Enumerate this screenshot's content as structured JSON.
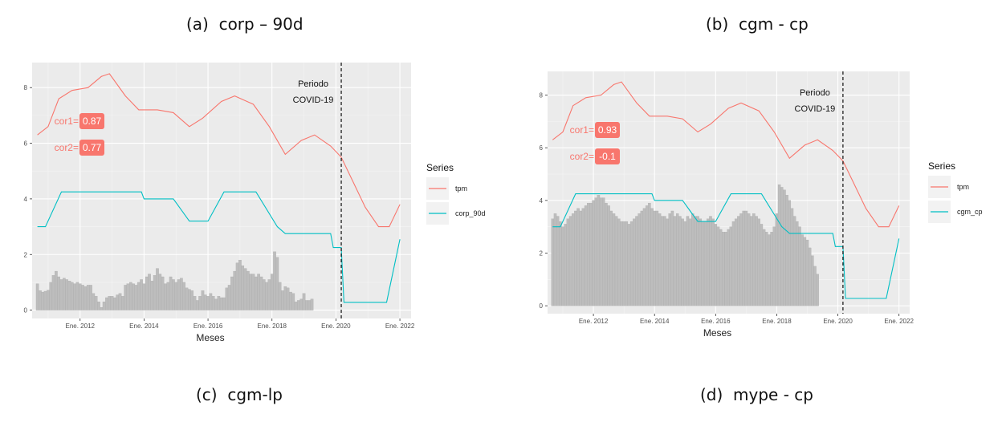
{
  "captions": [
    "(a)  corp – 90d",
    "(b)  cgm - cp",
    "(c)  cgm-lp",
    "(d)  mype - cp"
  ],
  "colors": {
    "tpm": "#F8766D",
    "series2": "#00BFC4",
    "bars": "#bdbdbd",
    "panel": "#ebebeb"
  },
  "chart_data": [
    {
      "type": "line",
      "caption": "(a)  corp – 90d",
      "xlabel": "Meses",
      "x_ticks": [
        "Ene. 2012",
        "Ene. 2014",
        "Ene. 2016",
        "Ene. 2018",
        "Ene. 2020",
        "Ene. 2022"
      ],
      "ylim": [
        -0.3,
        8.9
      ],
      "y_ticks": [
        0,
        2,
        4,
        6,
        8
      ],
      "legend_title": "Series",
      "legend_position": "right",
      "annotation": [
        "Periodo",
        "COVID-19"
      ],
      "covid_line": "2020-03",
      "correlations": [
        {
          "label": "cor1=",
          "value": "0.87"
        },
        {
          "label": "cor2=",
          "value": "0.77"
        }
      ],
      "series": [
        {
          "name": "tpm",
          "points": [
            [
              "2010-09",
              6.3
            ],
            [
              "2011-01",
              6.6
            ],
            [
              "2011-05",
              7.6
            ],
            [
              "2011-10",
              7.9
            ],
            [
              "2012-04",
              8.0
            ],
            [
              "2012-09",
              8.4
            ],
            [
              "2012-12",
              8.5
            ],
            [
              "2013-06",
              7.7
            ],
            [
              "2013-11",
              7.2
            ],
            [
              "2014-06",
              7.2
            ],
            [
              "2014-12",
              7.1
            ],
            [
              "2015-06",
              6.6
            ],
            [
              "2015-11",
              6.9
            ],
            [
              "2016-06",
              7.5
            ],
            [
              "2016-11",
              7.7
            ],
            [
              "2017-06",
              7.4
            ],
            [
              "2017-12",
              6.6
            ],
            [
              "2018-06",
              5.6
            ],
            [
              "2018-12",
              6.1
            ],
            [
              "2019-05",
              6.3
            ],
            [
              "2019-11",
              5.9
            ],
            [
              "2020-03",
              5.5
            ],
            [
              "2020-07",
              4.7
            ],
            [
              "2020-12",
              3.7
            ],
            [
              "2021-05",
              3.0
            ],
            [
              "2021-09",
              3.0
            ],
            [
              "2022-01",
              3.8
            ]
          ]
        },
        {
          "name": "corp_90d",
          "points": [
            [
              "2010-09",
              3.0
            ],
            [
              "2010-12",
              3.0
            ],
            [
              "2011-06",
              4.25
            ],
            [
              "2013-12",
              4.25
            ],
            [
              "2014-01",
              4.0
            ],
            [
              "2014-12",
              4.0
            ],
            [
              "2015-03",
              3.6
            ],
            [
              "2015-06",
              3.2
            ],
            [
              "2016-01",
              3.2
            ],
            [
              "2016-07",
              4.25
            ],
            [
              "2017-07",
              4.25
            ],
            [
              "2018-03",
              3.0
            ],
            [
              "2018-06",
              2.75
            ],
            [
              "2019-11",
              2.75
            ],
            [
              "2019-12",
              2.25
            ],
            [
              "2020-03",
              2.25
            ],
            [
              "2020-04",
              0.28
            ],
            [
              "2021-08",
              0.28
            ],
            [
              "2022-01",
              2.55
            ]
          ]
        }
      ],
      "bars": [
        0.95,
        0.7,
        0.65,
        0.68,
        0.72,
        1.0,
        1.25,
        1.4,
        1.2,
        1.1,
        1.15,
        1.1,
        1.05,
        1.0,
        0.95,
        1.0,
        0.95,
        0.9,
        0.85,
        0.9,
        0.9,
        0.6,
        0.5,
        0.3,
        0.1,
        0.3,
        0.45,
        0.5,
        0.5,
        0.45,
        0.55,
        0.6,
        0.5,
        0.9,
        0.95,
        1.0,
        0.95,
        0.9,
        1.0,
        1.1,
        0.95,
        1.2,
        1.3,
        1.05,
        1.25,
        1.5,
        1.3,
        1.2,
        0.95,
        1.0,
        1.2,
        1.1,
        1.0,
        1.1,
        1.15,
        1.0,
        0.8,
        0.75,
        0.7,
        0.5,
        0.35,
        0.5,
        0.7,
        0.55,
        0.5,
        0.6,
        0.5,
        0.4,
        0.5,
        0.45,
        0.45,
        0.8,
        0.9,
        1.2,
        1.4,
        1.7,
        1.8,
        1.6,
        1.5,
        1.4,
        1.3,
        1.3,
        1.2,
        1.3,
        1.2,
        1.1,
        1.0,
        1.1,
        1.3,
        2.1,
        1.9,
        1.0,
        0.7,
        0.85,
        0.8,
        0.65,
        0.6,
        0.3,
        0.35,
        0.4,
        0.6,
        0.35,
        0.35,
        0.4
      ]
    },
    {
      "type": "line",
      "caption": "(b)  cgm - cp",
      "xlabel": "Meses",
      "x_ticks": [
        "Ene. 2012",
        "Ene. 2014",
        "Ene. 2016",
        "Ene. 2018",
        "Ene. 2020",
        "Ene. 2022"
      ],
      "ylim": [
        -0.3,
        8.9
      ],
      "y_ticks": [
        0,
        2,
        4,
        6,
        8
      ],
      "legend_title": "Series",
      "legend_position": "right",
      "annotation": [
        "Periodo",
        "COVID-19"
      ],
      "covid_line": "2020-03",
      "correlations": [
        {
          "label": "cor1=",
          "value": "0.93"
        },
        {
          "label": "cor2=",
          "value": "-0.1"
        }
      ],
      "series": [
        {
          "name": "tpm",
          "points": [
            [
              "2010-09",
              6.3
            ],
            [
              "2011-01",
              6.6
            ],
            [
              "2011-05",
              7.6
            ],
            [
              "2011-10",
              7.9
            ],
            [
              "2012-04",
              8.0
            ],
            [
              "2012-09",
              8.4
            ],
            [
              "2012-12",
              8.5
            ],
            [
              "2013-06",
              7.7
            ],
            [
              "2013-11",
              7.2
            ],
            [
              "2014-06",
              7.2
            ],
            [
              "2014-12",
              7.1
            ],
            [
              "2015-06",
              6.6
            ],
            [
              "2015-11",
              6.9
            ],
            [
              "2016-06",
              7.5
            ],
            [
              "2016-11",
              7.7
            ],
            [
              "2017-06",
              7.4
            ],
            [
              "2017-12",
              6.6
            ],
            [
              "2018-06",
              5.6
            ],
            [
              "2018-12",
              6.1
            ],
            [
              "2019-05",
              6.3
            ],
            [
              "2019-11",
              5.9
            ],
            [
              "2020-03",
              5.5
            ],
            [
              "2020-07",
              4.7
            ],
            [
              "2020-12",
              3.7
            ],
            [
              "2021-05",
              3.0
            ],
            [
              "2021-09",
              3.0
            ],
            [
              "2022-01",
              3.8
            ]
          ]
        },
        {
          "name": "cgm_cp",
          "points": [
            [
              "2010-09",
              3.0
            ],
            [
              "2010-12",
              3.0
            ],
            [
              "2011-06",
              4.25
            ],
            [
              "2013-12",
              4.25
            ],
            [
              "2014-01",
              4.0
            ],
            [
              "2014-12",
              4.0
            ],
            [
              "2015-03",
              3.6
            ],
            [
              "2015-06",
              3.2
            ],
            [
              "2016-01",
              3.2
            ],
            [
              "2016-07",
              4.25
            ],
            [
              "2017-07",
              4.25
            ],
            [
              "2018-03",
              3.0
            ],
            [
              "2018-06",
              2.75
            ],
            [
              "2019-11",
              2.75
            ],
            [
              "2019-12",
              2.25
            ],
            [
              "2020-03",
              2.25
            ],
            [
              "2020-04",
              0.28
            ],
            [
              "2021-08",
              0.28
            ],
            [
              "2022-01",
              2.55
            ]
          ]
        }
      ],
      "bars": [
        3.3,
        3.5,
        3.4,
        3.2,
        3.0,
        3.1,
        3.3,
        3.4,
        3.5,
        3.6,
        3.7,
        3.6,
        3.7,
        3.8,
        3.9,
        3.9,
        4.0,
        4.1,
        4.2,
        4.1,
        4.1,
        3.9,
        3.8,
        3.6,
        3.5,
        3.4,
        3.3,
        3.2,
        3.2,
        3.2,
        3.1,
        3.2,
        3.3,
        3.4,
        3.5,
        3.6,
        3.7,
        3.8,
        3.9,
        3.7,
        3.6,
        3.6,
        3.5,
        3.4,
        3.4,
        3.3,
        3.5,
        3.6,
        3.4,
        3.5,
        3.4,
        3.3,
        3.2,
        3.4,
        3.3,
        3.5,
        3.4,
        3.4,
        3.3,
        3.2,
        3.2,
        3.3,
        3.4,
        3.3,
        3.1,
        3.0,
        2.9,
        2.8,
        2.8,
        2.9,
        3.0,
        3.2,
        3.3,
        3.4,
        3.5,
        3.6,
        3.6,
        3.5,
        3.4,
        3.5,
        3.4,
        3.3,
        3.1,
        2.9,
        2.8,
        2.7,
        2.8,
        3.0,
        3.5,
        4.6,
        4.5,
        4.4,
        4.2,
        4.0,
        3.7,
        3.4,
        3.2,
        3.0,
        2.7,
        2.6,
        2.5,
        2.2,
        1.9,
        1.5,
        1.2
      ]
    }
  ]
}
